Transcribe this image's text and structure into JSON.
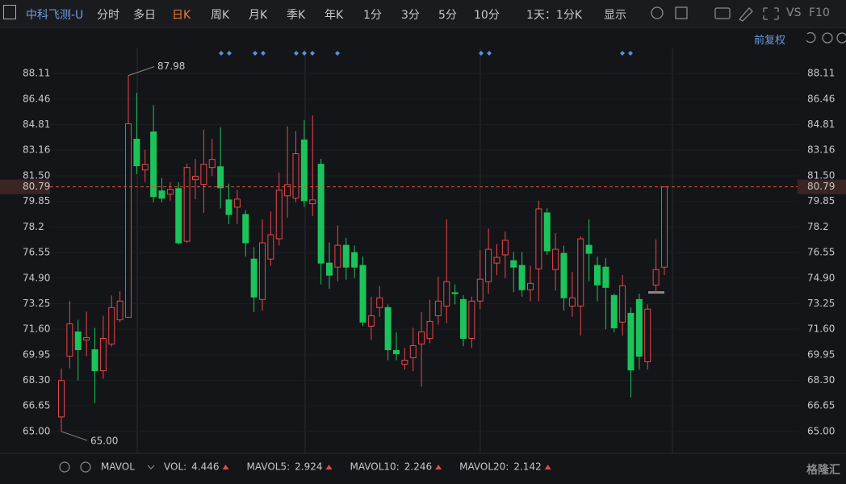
{
  "toolbar": {
    "stock": "中科飞测-U",
    "tabs": [
      "分时",
      "多日",
      "日K",
      "周K",
      "月K",
      "季K",
      "年K",
      "1分",
      "3分",
      "5分",
      "10分",
      "1天：1分K",
      "显示"
    ],
    "active_tab": 2,
    "right": [
      "VS",
      "F10"
    ],
    "adjust": "前复权"
  },
  "chart_data": {
    "type": "candlestick",
    "open": [
      65.94,
      69.86,
      71.43,
      70.91,
      70.28,
      68.92,
      70.65,
      72.21,
      72.37,
      83.87,
      81.88,
      84.34,
      80.53,
      80.32,
      80.68,
      77.28,
      81.26,
      80.95,
      82.04,
      82.09,
      79.95,
      79.48,
      79.01,
      76.13,
      73.52,
      76.13,
      77.44,
      80.21,
      80.06,
      83.82,
      79.7,
      82.25,
      75.87,
      75.61,
      77.02,
      76.55,
      75.72,
      71.8,
      73.0,
      73.0,
      70.23,
      69.34,
      69.76,
      70.65,
      71.01,
      72.47,
      73.1,
      73.96,
      73.52,
      71.01,
      73.42,
      74.67,
      75.87,
      76.4,
      76.03,
      75.72,
      74.15,
      75.5,
      79.11,
      75.45,
      76.5,
      73.1,
      73.1,
      77.02,
      75.72,
      75.61,
      73.78,
      72.06,
      72.63,
      73.52,
      69.5,
      74.46,
      75.61
    ],
    "high": [
      69.08,
      73.42,
      72.21,
      72.74,
      71.69,
      72.47,
      73.78,
      74.04,
      87.98,
      86.85,
      83.19,
      86.07,
      81.36,
      81.1,
      81.1,
      82.3,
      82.6,
      84.5,
      83.9,
      84.65,
      81.0,
      80.6,
      79.3,
      76.9,
      78.7,
      79.2,
      81.7,
      84.7,
      84.4,
      85.1,
      85.4,
      82.6,
      77.2,
      78.3,
      77.5,
      77.0,
      76.3,
      73.7,
      74.4,
      73.2,
      71.4,
      70.4,
      71.7,
      72.7,
      73.5,
      75.0,
      78.7,
      74.5,
      73.8,
      73.7,
      76.7,
      78.1,
      77.1,
      77.9,
      76.6,
      76.6,
      75.7,
      79.9,
      79.4,
      77.8,
      77.0,
      75.3,
      77.6,
      78.7,
      76.3,
      76.2,
      73.9,
      75.1,
      73.0,
      73.9,
      73.2,
      77.4,
      80.79
    ],
    "low": [
      65,
      69.08,
      68.29,
      69.86,
      66.83,
      68.4,
      70.49,
      72.06,
      72.37,
      81.62,
      81.1,
      79.79,
      79.79,
      79.9,
      77.08,
      77.18,
      80.0,
      79.1,
      81.5,
      79.4,
      78.4,
      78.4,
      76.3,
      72.7,
      72.8,
      75.7,
      77.0,
      78.8,
      79.8,
      79.5,
      78.9,
      74.5,
      74.2,
      74.7,
      74.8,
      74.9,
      71.8,
      70.9,
      72.4,
      69.6,
      69.6,
      69.0,
      68.9,
      67.9,
      70.7,
      71.9,
      72.0,
      73.2,
      70.5,
      70.4,
      72.9,
      73.9,
      75.1,
      74.9,
      74.0,
      73.7,
      73.4,
      73.4,
      76.4,
      74.1,
      72.8,
      72.4,
      71.2,
      74.7,
      73.4,
      71.6,
      71.4,
      71.2,
      67.2,
      69.0,
      69.0,
      73.9,
      75.1
    ],
    "close": [
      68.29,
      71.95,
      70.28,
      71.06,
      68.92,
      71.01,
      73.0,
      73.42,
      84.86,
      82.15,
      82.25,
      80.16,
      80.06,
      80.63,
      77.18,
      82.04,
      81.47,
      82.25,
      82.56,
      80.73,
      79.01,
      80.0,
      77.18,
      73.68,
      77.18,
      77.7,
      80.58,
      80.94,
      82.93,
      79.9,
      79.95,
      75.87,
      75.09,
      77.02,
      75.61,
      75.61,
      72.06,
      72.47,
      73.63,
      70.28,
      70.02,
      69.6,
      70.54,
      71.43,
      72.11,
      73.42,
      74.67,
      73.9,
      71.01,
      73.42,
      74.83,
      76.76,
      76.24,
      77.34,
      75.61,
      74.15,
      74.56,
      79.37,
      76.66,
      76.76,
      73.63,
      73.63,
      77.44,
      76.5,
      74.46,
      74.3,
      71.69,
      74.41,
      68.97,
      69.86,
      72.9,
      75.45,
      80.79
    ],
    "up_color": "#e8474a",
    "down_color": "#1cc35b",
    "ylim": [
      63.59,
      89.73
    ],
    "yticks": [
      88.11,
      86.46,
      84.81,
      83.16,
      {
        "value": 81.5,
        "label": "81.50"
      },
      79.85,
      78.2,
      76.55,
      {
        "value": 74.9,
        "label": "74.90"
      },
      73.25,
      {
        "value": 71.6,
        "label": "71.60"
      },
      69.95,
      {
        "value": 68.3,
        "label": "68.30"
      },
      66.65,
      {
        "value": 65,
        "label": "65.00"
      }
    ],
    "high_label": {
      "value": 87.98,
      "label": "87.98"
    },
    "low_label": {
      "value": 65,
      "label": "65.00"
    },
    "last_price": {
      "value": 80.79,
      "label": "80.79"
    }
  },
  "indicators": {
    "name": "MAVOL",
    "items": [
      {
        "name": "VOL:",
        "value": 4.446,
        "color": "#e8474a"
      },
      {
        "name": "MAVOL5:",
        "value": 2.924,
        "color": "#e8a33a"
      },
      {
        "name": "MAVOL10:",
        "value": 2.246,
        "color": "#3aa3e8"
      },
      {
        "name": "MAVOL20:",
        "value": 2.142,
        "color": "#d673d6"
      }
    ]
  },
  "watermark": "格隆汇"
}
